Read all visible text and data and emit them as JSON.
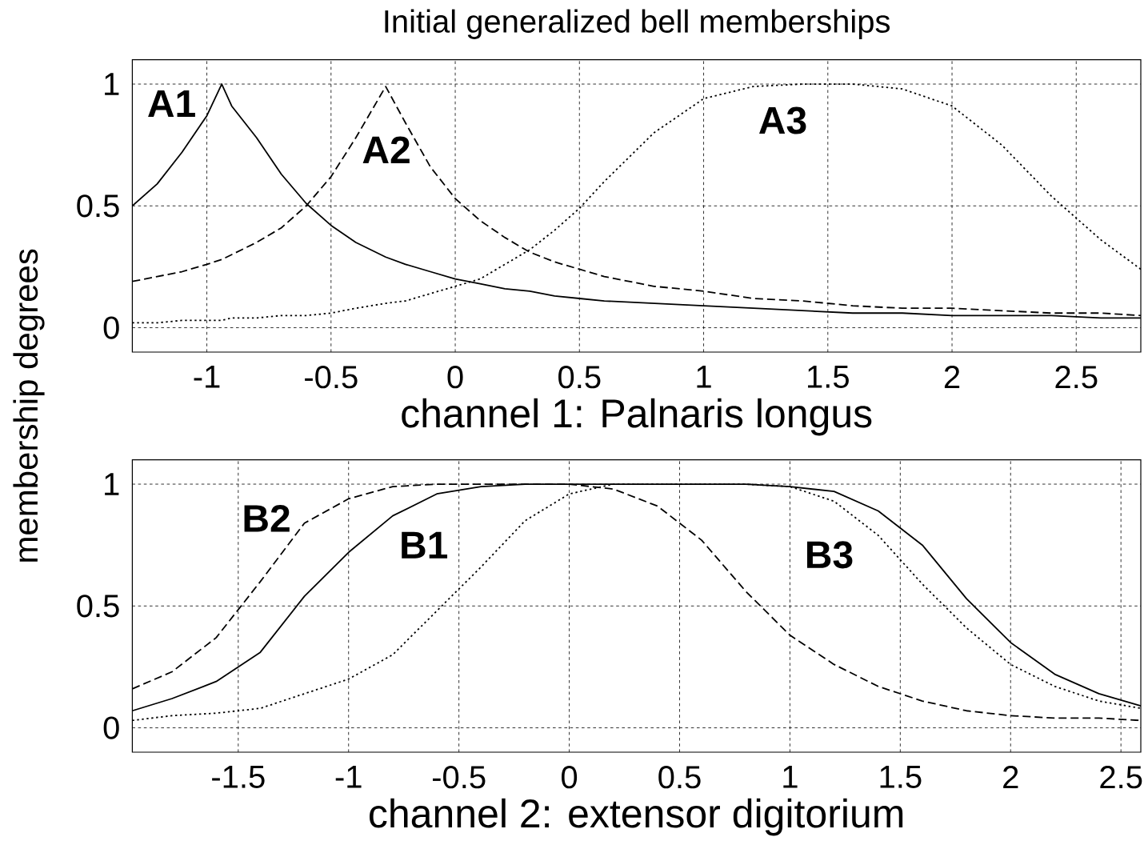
{
  "chart_data": [
    {
      "type": "line",
      "title": "Initial generalized bell memberships",
      "xlabel": "channel 1: Palnaris longus",
      "ylabel": "membership degrees",
      "x": [
        -1.3,
        -1.2,
        -1.1,
        -1.0,
        -0.94,
        -0.9,
        -0.8,
        -0.7,
        -0.6,
        -0.5,
        -0.4,
        -0.28,
        -0.2,
        -0.1,
        0,
        0.1,
        0.2,
        0.3,
        0.4,
        0.5,
        0.6,
        0.8,
        1.0,
        1.2,
        1.4,
        1.6,
        1.8,
        2.0,
        2.2,
        2.4,
        2.6,
        2.76
      ],
      "series": [
        {
          "name": "A1",
          "color": "#000000",
          "line_style": "solid",
          "values": [
            0.5,
            0.59,
            0.72,
            0.87,
            1.0,
            0.91,
            0.78,
            0.63,
            0.51,
            0.42,
            0.35,
            0.29,
            0.26,
            0.23,
            0.2,
            0.18,
            0.16,
            0.15,
            0.13,
            0.12,
            0.11,
            0.1,
            0.09,
            0.08,
            0.07,
            0.06,
            0.06,
            0.05,
            0.05,
            0.05,
            0.04,
            0.04
          ]
        },
        {
          "name": "A2",
          "color": "#000000",
          "line_style": "dashed",
          "values": [
            0.19,
            0.21,
            0.23,
            0.26,
            0.28,
            0.3,
            0.35,
            0.41,
            0.5,
            0.62,
            0.78,
            0.99,
            0.84,
            0.66,
            0.53,
            0.44,
            0.37,
            0.31,
            0.27,
            0.24,
            0.21,
            0.17,
            0.15,
            0.12,
            0.11,
            0.09,
            0.08,
            0.08,
            0.07,
            0.06,
            0.06,
            0.05
          ]
        },
        {
          "name": "A3",
          "color": "#000000",
          "line_style": "dotted",
          "values": [
            0.02,
            0.02,
            0.03,
            0.03,
            0.03,
            0.04,
            0.04,
            0.05,
            0.05,
            0.06,
            0.08,
            0.1,
            0.11,
            0.14,
            0.17,
            0.2,
            0.26,
            0.32,
            0.4,
            0.49,
            0.6,
            0.8,
            0.94,
            0.99,
            1.0,
            1.0,
            0.98,
            0.91,
            0.75,
            0.54,
            0.36,
            0.24
          ]
        }
      ],
      "xlim": [
        -1.3,
        2.76
      ],
      "ylim": [
        -0.1,
        1.1
      ],
      "xticks": [
        -1,
        -0.5,
        0,
        0.5,
        1,
        1.5,
        2,
        2.5
      ],
      "yticks": [
        0,
        0.5,
        1
      ],
      "grid": true
    },
    {
      "type": "line",
      "xlabel": "channel 2: extensor digitorium",
      "x": [
        -1.98,
        -1.8,
        -1.6,
        -1.4,
        -1.2,
        -1.0,
        -0.8,
        -0.6,
        -0.4,
        -0.2,
        0,
        0.2,
        0.4,
        0.6,
        0.8,
        1.0,
        1.2,
        1.4,
        1.6,
        1.8,
        2.0,
        2.2,
        2.4,
        2.59
      ],
      "series": [
        {
          "name": "B1",
          "color": "#000000",
          "line_style": "solid",
          "values": [
            0.07,
            0.12,
            0.19,
            0.31,
            0.54,
            0.72,
            0.87,
            0.96,
            0.99,
            1.0,
            1.0,
            1.0,
            1.0,
            1.0,
            1.0,
            0.99,
            0.97,
            0.89,
            0.75,
            0.53,
            0.35,
            0.22,
            0.14,
            0.09
          ]
        },
        {
          "name": "B2",
          "color": "#000000",
          "line_style": "dashed",
          "values": [
            0.16,
            0.23,
            0.37,
            0.6,
            0.84,
            0.94,
            0.99,
            1.0,
            1.0,
            1.0,
            1.0,
            0.98,
            0.91,
            0.77,
            0.56,
            0.38,
            0.26,
            0.17,
            0.11,
            0.07,
            0.05,
            0.04,
            0.04,
            0.03
          ]
        },
        {
          "name": "B3",
          "color": "#000000",
          "line_style": "dotted",
          "values": [
            0.03,
            0.05,
            0.06,
            0.08,
            0.14,
            0.2,
            0.3,
            0.48,
            0.66,
            0.85,
            0.96,
            1.0,
            1.0,
            1.0,
            1.0,
            0.99,
            0.93,
            0.79,
            0.59,
            0.41,
            0.26,
            0.17,
            0.11,
            0.08
          ]
        }
      ],
      "xlim": [
        -1.98,
        2.59
      ],
      "ylim": [
        -0.1,
        1.1
      ],
      "xticks": [
        -1.5,
        -1,
        -0.5,
        0,
        0.5,
        1,
        1.5,
        2,
        2.5
      ],
      "yticks": [
        0,
        0.5,
        1
      ],
      "grid": true
    }
  ]
}
